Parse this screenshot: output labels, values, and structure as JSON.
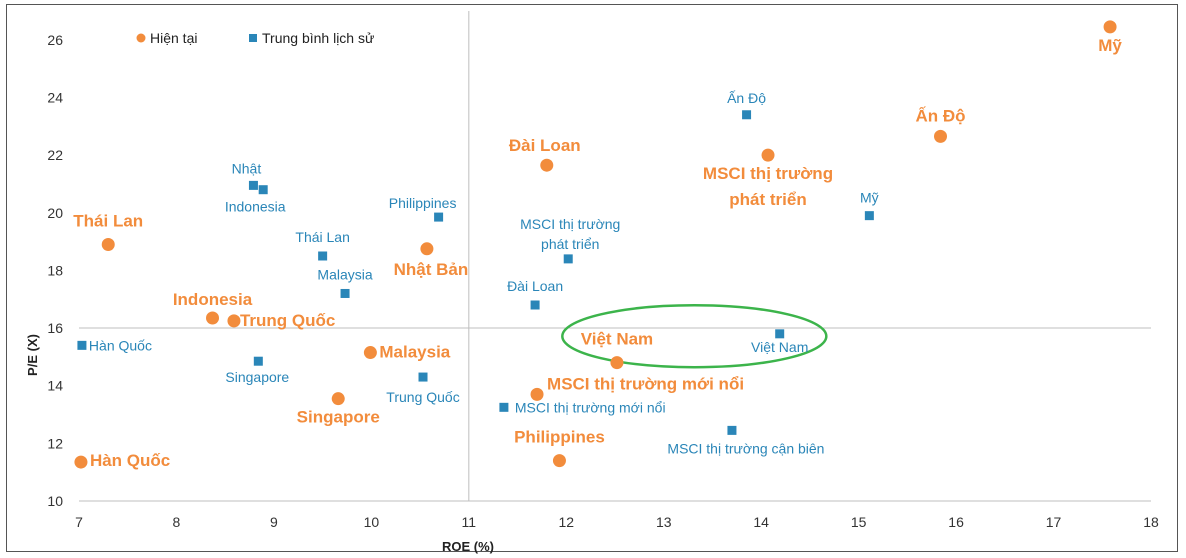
{
  "chart_data": {
    "type": "scatter",
    "title": "",
    "xlabel": "ROE (%)",
    "ylabel": "P/E (X)",
    "xlim": [
      7,
      18
    ],
    "ylim": [
      10,
      27
    ],
    "xticks": [
      7,
      8,
      9,
      10,
      11,
      12,
      13,
      14,
      15,
      16,
      17,
      18
    ],
    "yticks": [
      10,
      12,
      14,
      16,
      18,
      20,
      22,
      24,
      26
    ],
    "reference_lines": {
      "x": 11,
      "y": 16
    },
    "legend": {
      "position": "top-left"
    },
    "colors": {
      "current": "#f28c3c",
      "historical": "#2a86b8",
      "highlight": "#3cb44b"
    },
    "series": [
      {
        "name": "Hiện tại",
        "marker": "circle",
        "points": [
          {
            "label": "Mỹ",
            "x": 17.58,
            "y": 26.45
          },
          {
            "label": "Ấn Độ",
            "x": 15.84,
            "y": 22.65
          },
          {
            "label": "MSCI thị trường phát triển",
            "x": 14.07,
            "y": 22.0
          },
          {
            "label": "Đài Loan",
            "x": 11.8,
            "y": 21.65
          },
          {
            "label": "Thái Lan",
            "x": 7.3,
            "y": 18.9
          },
          {
            "label": "Nhật Bản",
            "x": 10.57,
            "y": 18.75
          },
          {
            "label": "Indonesia",
            "x": 8.37,
            "y": 16.35
          },
          {
            "label": "Trung Quốc",
            "x": 8.59,
            "y": 16.25
          },
          {
            "label": "Malaysia",
            "x": 9.99,
            "y": 15.15
          },
          {
            "label": "Việt Nam",
            "x": 12.52,
            "y": 14.8
          },
          {
            "label": "MSCI thị trường mới nổi",
            "x": 11.7,
            "y": 13.7
          },
          {
            "label": "Singapore",
            "x": 9.66,
            "y": 13.55
          },
          {
            "label": "Philippines",
            "x": 11.93,
            "y": 11.4
          },
          {
            "label": "Hàn Quốc",
            "x": 7.02,
            "y": 11.35
          }
        ]
      },
      {
        "name": "Trung bình lịch sử",
        "marker": "square",
        "points": [
          {
            "label": "Ấn Độ",
            "x": 13.85,
            "y": 23.4
          },
          {
            "label": "Nhật",
            "x": 8.79,
            "y": 20.95
          },
          {
            "label": "Indonesia",
            "x": 8.89,
            "y": 20.8
          },
          {
            "label": "Philippines",
            "x": 10.69,
            "y": 19.85
          },
          {
            "label": "Mỹ",
            "x": 15.11,
            "y": 19.9
          },
          {
            "label": "Thái Lan",
            "x": 9.5,
            "y": 18.5
          },
          {
            "label": "MSCI thị trường phát triển",
            "x": 12.02,
            "y": 18.4
          },
          {
            "label": "Malaysia",
            "x": 9.73,
            "y": 17.2
          },
          {
            "label": "Đài Loan",
            "x": 11.68,
            "y": 16.8
          },
          {
            "label": "Việt Nam",
            "x": 14.19,
            "y": 15.8
          },
          {
            "label": "Hàn Quốc",
            "x": 7.03,
            "y": 15.4
          },
          {
            "label": "Singapore",
            "x": 8.84,
            "y": 14.85
          },
          {
            "label": "Trung Quốc",
            "x": 10.53,
            "y": 14.3
          },
          {
            "label": "MSCI thị trường mới nổi",
            "x": 11.36,
            "y": 13.25
          },
          {
            "label": "MSCI thị trường cận biên",
            "x": 13.7,
            "y": 12.45
          }
        ]
      }
    ]
  }
}
